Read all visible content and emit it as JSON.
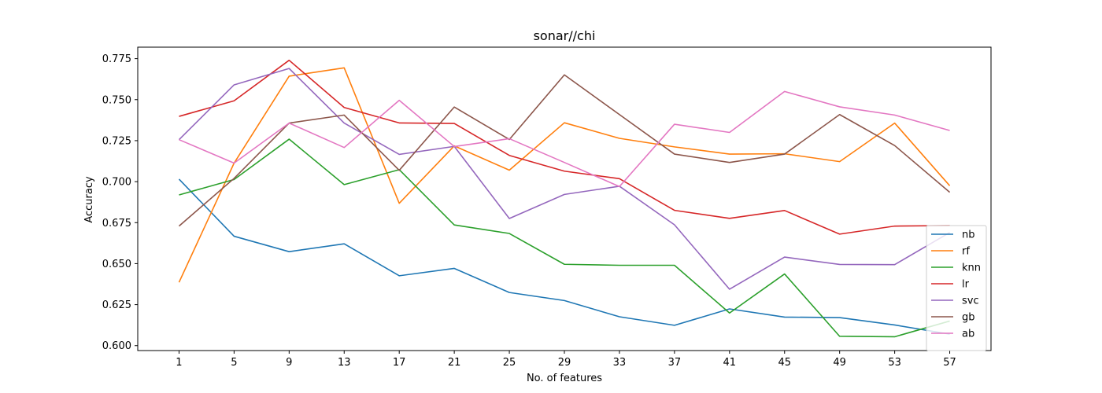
{
  "chart_data": {
    "type": "line",
    "title": "sonar//chi",
    "xlabel": "No. of features",
    "ylabel": "Accuracy",
    "x": [
      1,
      5,
      9,
      13,
      17,
      21,
      25,
      29,
      33,
      37,
      41,
      45,
      49,
      53,
      57
    ],
    "xlim": [
      -2,
      60
    ],
    "ylim": [
      0.597,
      0.782
    ],
    "yticks": [
      0.6,
      0.625,
      0.65,
      0.675,
      0.7,
      0.725,
      0.75,
      0.775
    ],
    "ytick_labels": [
      "0.600",
      "0.625",
      "0.650",
      "0.675",
      "0.700",
      "0.725",
      "0.750",
      "0.775"
    ],
    "grid": false,
    "legend_position": "lower-right",
    "series": [
      {
        "name": "nb",
        "color": "#1f77b4",
        "values": [
          0.7015,
          0.6667,
          0.6573,
          0.6621,
          0.6426,
          0.6471,
          0.6324,
          0.6275,
          0.6176,
          0.6124,
          0.6224,
          0.6174,
          0.6171,
          0.6126,
          0.607
        ]
      },
      {
        "name": "rf",
        "color": "#ff7f0e",
        "values": [
          0.6386,
          0.7113,
          0.7643,
          0.7694,
          0.6868,
          0.7218,
          0.707,
          0.7359,
          0.7264,
          0.7212,
          0.7168,
          0.717,
          0.7122,
          0.7357,
          0.6975
        ]
      },
      {
        "name": "knn",
        "color": "#2ca02c",
        "values": [
          0.6919,
          0.7013,
          0.7259,
          0.6982,
          0.7073,
          0.6736,
          0.6684,
          0.6496,
          0.649,
          0.649,
          0.6199,
          0.6437,
          0.6057,
          0.6054,
          0.615
        ]
      },
      {
        "name": "lr",
        "color": "#d62728",
        "values": [
          0.7398,
          0.7493,
          0.774,
          0.7452,
          0.7358,
          0.7355,
          0.716,
          0.7064,
          0.7018,
          0.6825,
          0.6776,
          0.6824,
          0.668,
          0.6729,
          0.6732
        ]
      },
      {
        "name": "svc",
        "color": "#9467bd",
        "values": [
          0.7256,
          0.759,
          0.769,
          0.7357,
          0.7166,
          0.7215,
          0.6775,
          0.6922,
          0.6972,
          0.6737,
          0.6344,
          0.654,
          0.6495,
          0.6494,
          0.669
        ]
      },
      {
        "name": "gb",
        "color": "#8c564b",
        "values": [
          0.6729,
          0.702,
          0.7357,
          0.7406,
          0.7069,
          0.7455,
          0.7257,
          0.7651,
          0.7409,
          0.7168,
          0.7117,
          0.7168,
          0.7409,
          0.722,
          0.6935
        ]
      },
      {
        "name": "ab",
        "color": "#e377c2",
        "values": [
          0.7256,
          0.7113,
          0.7357,
          0.7208,
          0.7496,
          0.7214,
          0.7262,
          0.7117,
          0.697,
          0.735,
          0.73,
          0.755,
          0.7456,
          0.7406,
          0.7312
        ]
      }
    ]
  }
}
